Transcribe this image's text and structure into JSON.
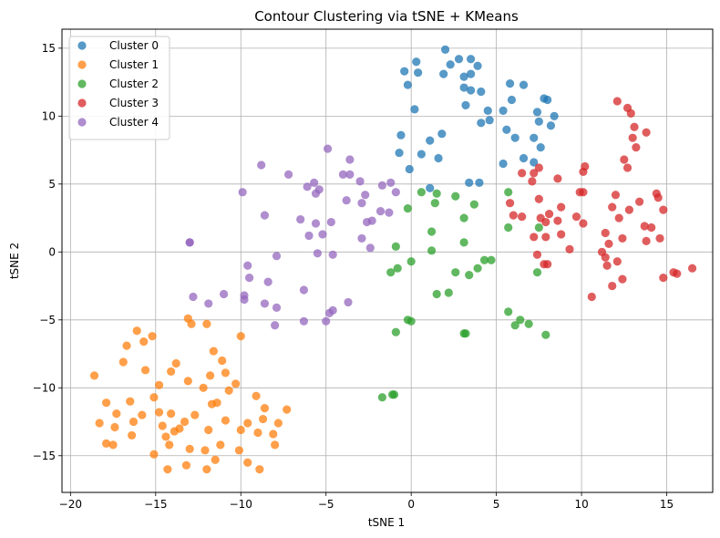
{
  "chart_data": {
    "type": "scatter",
    "title": "Contour Clustering via tSNE + KMeans",
    "xlabel": "tSNE 1",
    "ylabel": "tSNE 2",
    "xlim": [
      -20.5,
      17.7
    ],
    "ylim": [
      -17.7,
      16.4
    ],
    "xticks": [
      -20,
      -15,
      -10,
      -5,
      0,
      5,
      10,
      15
    ],
    "yticks": [
      -15,
      -10,
      -5,
      0,
      5,
      10,
      15
    ],
    "grid": true,
    "legend_position": "top-left",
    "series": [
      {
        "name": "Cluster 0",
        "color": "#1f77b4",
        "points": [
          [
            2.0,
            14.9
          ],
          [
            2.8,
            14.2
          ],
          [
            3.5,
            14.2
          ],
          [
            3.9,
            13.7
          ],
          [
            2.3,
            13.8
          ],
          [
            1.9,
            13.1
          ],
          [
            3.1,
            12.9
          ],
          [
            3.5,
            13.1
          ],
          [
            0.3,
            14.0
          ],
          [
            -0.4,
            13.3
          ],
          [
            0.4,
            13.2
          ],
          [
            -0.2,
            12.3
          ],
          [
            3.1,
            12.1
          ],
          [
            3.5,
            11.9
          ],
          [
            4.1,
            11.8
          ],
          [
            5.8,
            12.4
          ],
          [
            6.6,
            12.3
          ],
          [
            5.9,
            11.2
          ],
          [
            7.8,
            11.3
          ],
          [
            8.0,
            11.2
          ],
          [
            3.2,
            10.8
          ],
          [
            4.5,
            10.4
          ],
          [
            5.4,
            10.4
          ],
          [
            7.4,
            10.3
          ],
          [
            8.4,
            10.0
          ],
          [
            4.1,
            9.5
          ],
          [
            4.6,
            9.7
          ],
          [
            7.5,
            9.6
          ],
          [
            8.2,
            9.3
          ],
          [
            0.2,
            10.5
          ],
          [
            5.6,
            9.0
          ],
          [
            6.1,
            8.4
          ],
          [
            7.2,
            8.4
          ],
          [
            7.6,
            7.7
          ],
          [
            -0.6,
            8.6
          ],
          [
            1.1,
            8.2
          ],
          [
            1.8,
            8.7
          ],
          [
            -0.7,
            7.3
          ],
          [
            0.6,
            7.2
          ],
          [
            1.6,
            6.9
          ],
          [
            6.6,
            6.9
          ],
          [
            7.2,
            6.6
          ],
          [
            -0.1,
            6.1
          ],
          [
            5.4,
            6.5
          ],
          [
            1.1,
            4.7
          ],
          [
            3.4,
            5.1
          ],
          [
            4.0,
            5.1
          ]
        ]
      },
      {
        "name": "Cluster 1",
        "color": "#ff7f0e",
        "points": [
          [
            -18.6,
            -9.1
          ],
          [
            -16.1,
            -5.8
          ],
          [
            -15.2,
            -6.2
          ],
          [
            -15.7,
            -6.6
          ],
          [
            -16.7,
            -6.9
          ],
          [
            -13.1,
            -4.9
          ],
          [
            -12.9,
            -5.3
          ],
          [
            -12.0,
            -5.3
          ],
          [
            -10.0,
            -6.2
          ],
          [
            -16.9,
            -8.1
          ],
          [
            -15.6,
            -8.7
          ],
          [
            -13.8,
            -8.2
          ],
          [
            -11.6,
            -7.3
          ],
          [
            -11.1,
            -8.0
          ],
          [
            -14.1,
            -8.8
          ],
          [
            -14.8,
            -9.8
          ],
          [
            -13.1,
            -9.5
          ],
          [
            -12.2,
            -10.0
          ],
          [
            -11.8,
            -9.1
          ],
          [
            -10.9,
            -8.9
          ],
          [
            -10.3,
            -9.7
          ],
          [
            -17.9,
            -11.1
          ],
          [
            -16.5,
            -11.0
          ],
          [
            -15.1,
            -10.7
          ],
          [
            -14.8,
            -11.8
          ],
          [
            -14.1,
            -11.9
          ],
          [
            -11.7,
            -11.2
          ],
          [
            -11.4,
            -11.1
          ],
          [
            -10.7,
            -10.2
          ],
          [
            -9.1,
            -10.6
          ],
          [
            -8.6,
            -11.5
          ],
          [
            -7.3,
            -11.6
          ],
          [
            -18.3,
            -12.6
          ],
          [
            -17.3,
            -11.9
          ],
          [
            -16.3,
            -12.5
          ],
          [
            -15.8,
            -12.0
          ],
          [
            -14.6,
            -12.8
          ],
          [
            -13.9,
            -13.2
          ],
          [
            -13.3,
            -12.5
          ],
          [
            -12.7,
            -12.0
          ],
          [
            -11.9,
            -13.1
          ],
          [
            -10.9,
            -12.4
          ],
          [
            -9.6,
            -12.6
          ],
          [
            -8.7,
            -12.3
          ],
          [
            -7.8,
            -12.6
          ],
          [
            -17.4,
            -12.9
          ],
          [
            -16.4,
            -13.5
          ],
          [
            -14.4,
            -13.6
          ],
          [
            -13.6,
            -13.0
          ],
          [
            -11.2,
            -14.2
          ],
          [
            -10.0,
            -13.1
          ],
          [
            -9.0,
            -13.3
          ],
          [
            -8.1,
            -13.4
          ],
          [
            -17.9,
            -14.1
          ],
          [
            -17.5,
            -14.2
          ],
          [
            -15.1,
            -14.9
          ],
          [
            -14.2,
            -14.2
          ],
          [
            -13.0,
            -14.5
          ],
          [
            -12.1,
            -14.6
          ],
          [
            -10.1,
            -14.6
          ],
          [
            -8.0,
            -14.2
          ],
          [
            -14.3,
            -16.0
          ],
          [
            -13.2,
            -15.7
          ],
          [
            -12.0,
            -16.0
          ],
          [
            -11.5,
            -15.3
          ],
          [
            -9.6,
            -15.5
          ],
          [
            -8.9,
            -16.0
          ]
        ]
      },
      {
        "name": "Cluster 2",
        "color": "#2ca02c",
        "points": [
          [
            0.6,
            4.4
          ],
          [
            1.5,
            4.3
          ],
          [
            2.6,
            4.1
          ],
          [
            1.4,
            3.6
          ],
          [
            3.7,
            3.5
          ],
          [
            5.7,
            4.4
          ],
          [
            -0.2,
            3.2
          ],
          [
            3.1,
            2.5
          ],
          [
            5.7,
            1.8
          ],
          [
            7.5,
            1.8
          ],
          [
            -0.9,
            0.4
          ],
          [
            1.2,
            1.5
          ],
          [
            3.1,
            0.7
          ],
          [
            1.2,
            0.1
          ],
          [
            0.0,
            -0.7
          ],
          [
            4.3,
            -0.6
          ],
          [
            4.7,
            -0.6
          ],
          [
            3.9,
            -1.2
          ],
          [
            2.6,
            -1.5
          ],
          [
            -0.8,
            -1.2
          ],
          [
            -1.2,
            -1.5
          ],
          [
            7.4,
            -1.5
          ],
          [
            1.5,
            -3.1
          ],
          [
            2.2,
            -3.0
          ],
          [
            3.4,
            -1.7
          ],
          [
            5.7,
            -4.4
          ],
          [
            6.4,
            -5.0
          ],
          [
            6.1,
            -5.4
          ],
          [
            6.9,
            -5.3
          ],
          [
            -0.2,
            -5.0
          ],
          [
            0.0,
            -5.1
          ],
          [
            3.1,
            -6.0
          ],
          [
            3.2,
            -6.0
          ],
          [
            7.9,
            -6.1
          ],
          [
            -0.9,
            -5.9
          ],
          [
            -1.7,
            -10.7
          ],
          [
            -1.1,
            -10.5
          ],
          [
            -1.0,
            -10.5
          ]
        ]
      },
      {
        "name": "Cluster 3",
        "color": "#d62728",
        "points": [
          [
            12.1,
            11.1
          ],
          [
            12.7,
            10.6
          ],
          [
            12.9,
            10.2
          ],
          [
            13.1,
            9.2
          ],
          [
            13.0,
            8.4
          ],
          [
            13.8,
            8.8
          ],
          [
            13.2,
            7.7
          ],
          [
            12.5,
            6.8
          ],
          [
            12.7,
            6.2
          ],
          [
            10.2,
            6.3
          ],
          [
            10.1,
            5.9
          ],
          [
            6.5,
            5.8
          ],
          [
            7.2,
            5.8
          ],
          [
            7.1,
            5.2
          ],
          [
            8.6,
            5.4
          ],
          [
            9.9,
            4.4
          ],
          [
            10.1,
            4.4
          ],
          [
            12.0,
            4.2
          ],
          [
            14.4,
            4.3
          ],
          [
            14.5,
            4.0
          ],
          [
            13.4,
            3.7
          ],
          [
            5.8,
            3.6
          ],
          [
            7.5,
            3.9
          ],
          [
            7.5,
            6.2
          ],
          [
            8.1,
            2.8
          ],
          [
            8.8,
            3.3
          ],
          [
            6.0,
            2.7
          ],
          [
            6.5,
            2.6
          ],
          [
            7.6,
            2.5
          ],
          [
            8.6,
            2.3
          ],
          [
            9.7,
            2.6
          ],
          [
            10.1,
            2.1
          ],
          [
            11.8,
            3.3
          ],
          [
            12.2,
            2.5
          ],
          [
            12.8,
            3.1
          ],
          [
            13.7,
            1.9
          ],
          [
            14.1,
            1.8
          ],
          [
            14.8,
            3.1
          ],
          [
            7.2,
            1.1
          ],
          [
            7.9,
            2.2
          ],
          [
            7.9,
            1.1
          ],
          [
            8.8,
            1.3
          ],
          [
            11.4,
            1.4
          ],
          [
            11.6,
            0.6
          ],
          [
            12.4,
            1.0
          ],
          [
            13.8,
            0.8
          ],
          [
            14.6,
            1.0
          ],
          [
            7.4,
            -0.2
          ],
          [
            9.3,
            0.2
          ],
          [
            11.2,
            0.0
          ],
          [
            11.4,
            -0.4
          ],
          [
            11.5,
            -1.0
          ],
          [
            12.1,
            -0.7
          ],
          [
            7.8,
            -0.9
          ],
          [
            8.0,
            -0.9
          ],
          [
            12.4,
            -2.0
          ],
          [
            11.8,
            -2.5
          ],
          [
            10.6,
            -3.3
          ],
          [
            14.8,
            -1.9
          ],
          [
            15.4,
            -1.5
          ],
          [
            15.6,
            -1.6
          ],
          [
            16.5,
            -1.2
          ]
        ]
      },
      {
        "name": "Cluster 4",
        "color": "#9467bd",
        "points": [
          [
            -4.9,
            7.6
          ],
          [
            -3.6,
            6.8
          ],
          [
            -8.8,
            6.4
          ],
          [
            -7.2,
            5.7
          ],
          [
            -4.0,
            5.7
          ],
          [
            -3.6,
            5.7
          ],
          [
            -3.0,
            5.2
          ],
          [
            -1.7,
            4.9
          ],
          [
            -1.2,
            5.1
          ],
          [
            -6.1,
            4.8
          ],
          [
            -5.7,
            5.1
          ],
          [
            -5.4,
            4.6
          ],
          [
            -5.6,
            4.3
          ],
          [
            -9.9,
            4.4
          ],
          [
            -2.7,
            4.2
          ],
          [
            -0.9,
            4.4
          ],
          [
            -3.8,
            3.8
          ],
          [
            -2.9,
            3.6
          ],
          [
            -1.8,
            3.0
          ],
          [
            -1.3,
            2.9
          ],
          [
            -8.6,
            2.7
          ],
          [
            -6.5,
            2.4
          ],
          [
            -5.6,
            2.1
          ],
          [
            -4.7,
            2.2
          ],
          [
            -2.6,
            2.2
          ],
          [
            -2.3,
            2.3
          ],
          [
            -6.0,
            1.2
          ],
          [
            -5.2,
            1.3
          ],
          [
            -2.9,
            1.0
          ],
          [
            -13.0,
            0.7
          ],
          [
            -13.0,
            0.7
          ],
          [
            -5.5,
            -0.1
          ],
          [
            -4.6,
            -0.2
          ],
          [
            -2.4,
            0.3
          ],
          [
            -7.9,
            -0.3
          ],
          [
            -9.6,
            -1.0
          ],
          [
            -9.5,
            -1.9
          ],
          [
            -8.4,
            -2.2
          ],
          [
            -11.0,
            -3.1
          ],
          [
            -9.8,
            -3.5
          ],
          [
            -9.8,
            -3.2
          ],
          [
            -12.8,
            -3.3
          ],
          [
            -11.9,
            -3.8
          ],
          [
            -8.6,
            -3.8
          ],
          [
            -7.9,
            -4.1
          ],
          [
            -6.3,
            -2.8
          ],
          [
            -3.7,
            -3.7
          ],
          [
            -4.6,
            -4.3
          ],
          [
            -4.8,
            -4.5
          ],
          [
            -5.0,
            -5.1
          ],
          [
            -6.3,
            -5.1
          ],
          [
            -8.0,
            -5.4
          ]
        ]
      }
    ]
  }
}
